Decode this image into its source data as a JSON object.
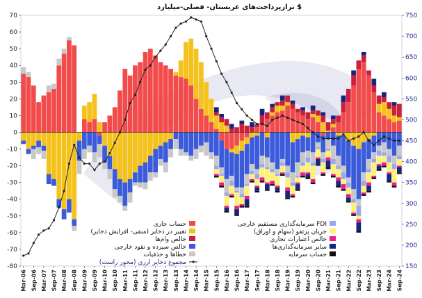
{
  "chart_data": {
    "type": "bar",
    "title": "ترازپرداخت‌های عربستان- فصلی-میلیارد $",
    "y_left": {
      "ylim": [
        -80,
        70
      ],
      "ticks": [
        70,
        60,
        50,
        40,
        30,
        20,
        10,
        0,
        -10,
        -20,
        -30,
        -40,
        -50,
        -60,
        -70,
        -80
      ]
    },
    "y_right": {
      "ylim": [
        150,
        750
      ],
      "ticks": [
        750,
        700,
        650,
        600,
        550,
        500,
        450,
        400,
        350,
        300,
        250,
        200,
        150
      ]
    },
    "x_tick_labels": [
      "Mar-06",
      "Sep-06",
      "Mar-07",
      "Sep-07",
      "Mar-08",
      "Sep-08",
      "Mar-09",
      "Sep-09",
      "Mar-10",
      "Sep-10",
      "Mar-11",
      "Sep-11",
      "Mar-12",
      "Sep-12",
      "Mar-13",
      "Sep-13",
      "Mar-14",
      "Sep-14",
      "Mar-15",
      "Sep-15",
      "Mar-16",
      "Sep-16",
      "Mar-17",
      "Sep-17",
      "Mar-18",
      "Sep-18",
      "Mar-19",
      "Sep-19",
      "Mar-20",
      "Sep-20",
      "Mar-21",
      "Sep-21",
      "Mar-22",
      "Sep-22",
      "Mar-23",
      "Sep-23",
      "Mar-24",
      "Sep-24"
    ],
    "quarters_count": 75,
    "series": [
      {
        "name": "حساب جاری",
        "color": "#f24b4b",
        "axis": "left",
        "values": [
          35,
          33,
          28,
          18,
          22,
          24,
          26,
          40,
          47,
          55,
          52,
          0,
          8,
          6,
          8,
          -2,
          6,
          10,
          15,
          25,
          38,
          34,
          40,
          42,
          48,
          50,
          46,
          42,
          40,
          38,
          34,
          33,
          32,
          28,
          20,
          14,
          10,
          6,
          2,
          -5,
          -10,
          -10,
          -8,
          -5,
          -3,
          0,
          3,
          5,
          8,
          10,
          12,
          13,
          16,
          14,
          12,
          10,
          8,
          9,
          6,
          -2,
          0,
          3,
          6,
          12,
          18,
          28,
          38,
          42,
          34,
          24,
          12,
          10,
          8,
          6,
          7
        ]
      },
      {
        "name": "تغییر در ذخایر (منفی- افزایش ذخایر)",
        "color": "#f5c21b",
        "axis": "left",
        "values": [
          -5,
          -10,
          -8,
          -5,
          -8,
          -25,
          -28,
          -40,
          -46,
          -40,
          -52,
          -5,
          8,
          12,
          15,
          6,
          -8,
          -14,
          -22,
          -28,
          -30,
          -28,
          -24,
          -20,
          -18,
          -14,
          -10,
          -8,
          -6,
          -4,
          2,
          10,
          22,
          28,
          30,
          28,
          20,
          14,
          8,
          6,
          4,
          -2,
          -5,
          -6,
          -4,
          -3,
          -2,
          0,
          -3,
          2,
          4,
          3,
          2,
          -6,
          -4,
          -2,
          -3,
          2,
          4,
          6,
          1,
          2,
          -2,
          -2,
          -5,
          -8,
          -10,
          -6,
          -4,
          -2,
          5,
          8,
          6,
          4,
          2
        ]
      },
      {
        "name": "خالص وام‌ها",
        "color": "#cc1f3a",
        "axis": "left",
        "values": [
          0,
          0,
          0,
          0,
          0,
          0,
          0,
          0,
          0,
          0,
          0,
          0,
          0,
          0,
          0,
          0,
          0,
          0,
          0,
          0,
          0,
          0,
          0,
          0,
          0,
          0,
          0,
          0,
          0,
          0,
          0,
          0,
          0,
          0,
          0,
          0,
          0,
          0,
          2,
          3,
          4,
          2,
          3,
          5,
          4,
          3,
          2,
          5,
          4,
          3,
          2,
          3,
          4,
          3,
          2,
          3,
          4,
          2,
          3,
          4,
          5,
          3,
          4,
          6,
          8,
          6,
          5,
          4,
          3,
          4,
          5,
          3,
          4,
          6,
          8
        ]
      },
      {
        "name": "خالص سپرده و نقود خارجی",
        "color": "#3b5bdb",
        "axis": "left",
        "values": [
          -2,
          -3,
          -2,
          -4,
          -3,
          -6,
          -4,
          -5,
          -6,
          -8,
          -4,
          -12,
          -10,
          -8,
          -12,
          -5,
          -10,
          -8,
          -12,
          -10,
          -14,
          -8,
          -6,
          -10,
          -12,
          -10,
          -14,
          -8,
          -12,
          -6,
          -4,
          -10,
          -12,
          -14,
          -10,
          -8,
          -6,
          -12,
          -14,
          -16,
          -18,
          -14,
          -20,
          -22,
          -18,
          -16,
          -20,
          -14,
          -12,
          -18,
          -22,
          -16,
          -20,
          -18,
          -14,
          -10,
          -8,
          -12,
          -6,
          -10,
          -4,
          -8,
          -12,
          -18,
          -22,
          -26,
          -30,
          -18,
          -12,
          -10,
          -8,
          -6,
          -10,
          -14,
          -8
        ]
      },
      {
        "name": "خطاها و حذفیات",
        "color": "#c8c8c8",
        "axis": "left",
        "values": [
          4,
          3,
          -6,
          -4,
          -5,
          4,
          3,
          4,
          3,
          2,
          -3,
          -8,
          -6,
          -4,
          -6,
          -8,
          -4,
          -6,
          -5,
          -4,
          -3,
          -6,
          -2,
          -3,
          -4,
          -5,
          -3,
          -4,
          -6,
          -5,
          -6,
          -4,
          -2,
          -3,
          -6,
          -4,
          -8,
          -4,
          -6,
          -4,
          -8,
          -3,
          -2,
          -4,
          -6,
          -4,
          -3,
          -5,
          -6,
          -4,
          -3,
          -2,
          -4,
          -6,
          -8,
          -6,
          -4,
          -6,
          -3,
          -4,
          -6,
          -8,
          -6,
          -4,
          -3,
          -6,
          -4,
          -5,
          -6,
          -4,
          -3,
          -6,
          -4,
          -5,
          -6
        ]
      },
      {
        "name": "سرمایه‌گذاری مستقیم خارجی FDI",
        "color": "#9aa6f0",
        "axis": "left",
        "values": [
          0,
          0,
          0,
          0,
          0,
          0,
          0,
          0,
          0,
          0,
          0,
          0,
          0,
          0,
          0,
          0,
          0,
          0,
          0,
          0,
          0,
          0,
          0,
          0,
          0,
          0,
          0,
          0,
          0,
          0,
          0,
          0,
          0,
          0,
          0,
          0,
          0,
          0,
          -2,
          -1,
          -2,
          -3,
          -1,
          -2,
          -1,
          -2,
          -3,
          -2,
          -1,
          -2,
          -1,
          -2,
          -3,
          -2,
          -1,
          -2,
          -3,
          -2,
          -1,
          -2,
          -1,
          -3,
          -2,
          -4,
          -3,
          -2,
          -6,
          -3,
          -2,
          -2,
          -3,
          -2,
          -4,
          -3,
          -2
        ]
      },
      {
        "name": "جریان پرتفو (سهام و اوراق)",
        "color": "#fff176",
        "axis": "left",
        "values": [
          0,
          0,
          0,
          0,
          0,
          0,
          0,
          0,
          0,
          0,
          0,
          0,
          0,
          0,
          0,
          0,
          0,
          0,
          0,
          0,
          0,
          0,
          0,
          0,
          0,
          0,
          0,
          0,
          0,
          0,
          0,
          0,
          0,
          0,
          0,
          0,
          0,
          0,
          -3,
          -4,
          -6,
          -5,
          -8,
          -4,
          -6,
          -3,
          -4,
          -6,
          -8,
          -5,
          -6,
          -4,
          -6,
          -5,
          -3,
          -4,
          -6,
          -8,
          -5,
          -6,
          -4,
          -6,
          -5,
          -3,
          -4,
          -6,
          -2,
          -4,
          -6,
          -8,
          -5,
          -4,
          -6,
          -8,
          -4
        ]
      },
      {
        "name": "خالص اعتبارات تجاری",
        "color": "#e91e8c",
        "axis": "left",
        "values": [
          0,
          0,
          0,
          0,
          0,
          0,
          0,
          0,
          0,
          0,
          0,
          0,
          0,
          0,
          0,
          0,
          0,
          0,
          0,
          0,
          0,
          0,
          0,
          0,
          0,
          0,
          0,
          0,
          0,
          0,
          0,
          0,
          0,
          0,
          0,
          0,
          0,
          0,
          -1,
          -2,
          -1,
          -1,
          -2,
          -1,
          -2,
          -1,
          -1,
          -2,
          -1,
          -2,
          -1,
          -1,
          -2,
          -1,
          -1,
          -2,
          -1,
          -2,
          -1,
          -1,
          -2,
          -1,
          -2,
          -3,
          -2,
          -1,
          -2,
          -1,
          -2,
          -1,
          -1,
          -2,
          -1,
          -2,
          -1
        ]
      },
      {
        "name": "سایر سرمایه‌گذاری‌ها",
        "color": "#1a237e",
        "axis": "left",
        "values": [
          0,
          0,
          0,
          0,
          0,
          0,
          0,
          0,
          0,
          0,
          0,
          0,
          0,
          0,
          0,
          0,
          0,
          0,
          0,
          0,
          0,
          0,
          0,
          0,
          0,
          0,
          0,
          0,
          0,
          0,
          0,
          0,
          0,
          0,
          0,
          0,
          0,
          0,
          3,
          2,
          -2,
          3,
          -3,
          2,
          -4,
          3,
          -2,
          4,
          -3,
          2,
          -2,
          3,
          -4,
          2,
          -3,
          2,
          -2,
          3,
          -3,
          2,
          -4,
          2,
          -3,
          4,
          -2,
          3,
          -5,
          2,
          -3,
          4,
          -2,
          3,
          -4,
          2,
          -3
        ]
      },
      {
        "name": "حساب سرمایه",
        "color": "#111111",
        "axis": "left",
        "values": [
          0,
          0,
          0,
          0,
          0,
          0,
          0,
          0,
          0,
          0,
          0,
          0,
          0,
          0,
          0,
          0,
          0,
          0,
          0,
          0,
          0,
          0,
          0,
          0,
          0,
          0,
          0,
          0,
          0,
          0,
          0,
          0,
          0,
          0,
          0,
          0,
          0,
          0,
          -1,
          -1,
          -1,
          -1,
          -1,
          -1,
          -1,
          -1,
          -1,
          -1,
          -1,
          -1,
          -1,
          -1,
          -1,
          -1,
          -1,
          -1,
          -1,
          -1,
          -1,
          -1,
          -1,
          -1,
          -1,
          -1,
          -1,
          -1,
          -1,
          -1,
          -1,
          -1,
          -1,
          -1,
          -1,
          -1,
          -1
        ]
      },
      {
        "name": "مجموع ذخایر ارزی (محور راست)",
        "color": "#222222",
        "axis": "right",
        "type": "line",
        "values": [
          175,
          180,
          205,
          225,
          235,
          240,
          260,
          290,
          330,
          395,
          440,
          410,
          395,
          395,
          380,
          395,
          400,
          420,
          445,
          470,
          500,
          540,
          560,
          590,
          620,
          630,
          650,
          665,
          680,
          700,
          720,
          730,
          735,
          745,
          740,
          735,
          700,
          670,
          640,
          610,
          590,
          565,
          540,
          525,
          510,
          500,
          490,
          490,
          485,
          500,
          505,
          510,
          505,
          500,
          495,
          490,
          480,
          470,
          460,
          455,
          455,
          455,
          455,
          465,
          450,
          455,
          460,
          470,
          450,
          440,
          450,
          460,
          455,
          450,
          450
        ]
      }
    ],
    "legend": [
      {
        "label": "حساب جاری",
        "color": "#f24b4b",
        "kind": "box"
      },
      {
        "label": "تغییر در ذخایر (منفی- افزایش ذخایر)",
        "color": "#f5c21b",
        "kind": "box"
      },
      {
        "label": "خالص وام‌ها",
        "color": "#cc1f3a",
        "kind": "box"
      },
      {
        "label": "خالص سپرده و نقود خارجی",
        "color": "#3b5bdb",
        "kind": "box"
      },
      {
        "label": "خطاها و حذفیات",
        "color": "#c8c8c8",
        "kind": "box"
      },
      {
        "label": "مجموع ذخایر ارزی (محور راست)",
        "color": "#222222",
        "kind": "line"
      },
      {
        "label": "سرمایه‌گذاری مستقیم خارجی FDI",
        "color": "#9aa6f0",
        "kind": "box"
      },
      {
        "label": "جریان پرتفو (سهام و اوراق)",
        "color": "#fff176",
        "kind": "box"
      },
      {
        "label": "خالص اعتبارات تجاری",
        "color": "#e91e8c",
        "kind": "box"
      },
      {
        "label": "سایر سرمایه‌گذاری‌ها",
        "color": "#1a237e",
        "kind": "box"
      },
      {
        "label": "حساب سرمایه",
        "color": "#111111",
        "kind": "box"
      }
    ]
  }
}
